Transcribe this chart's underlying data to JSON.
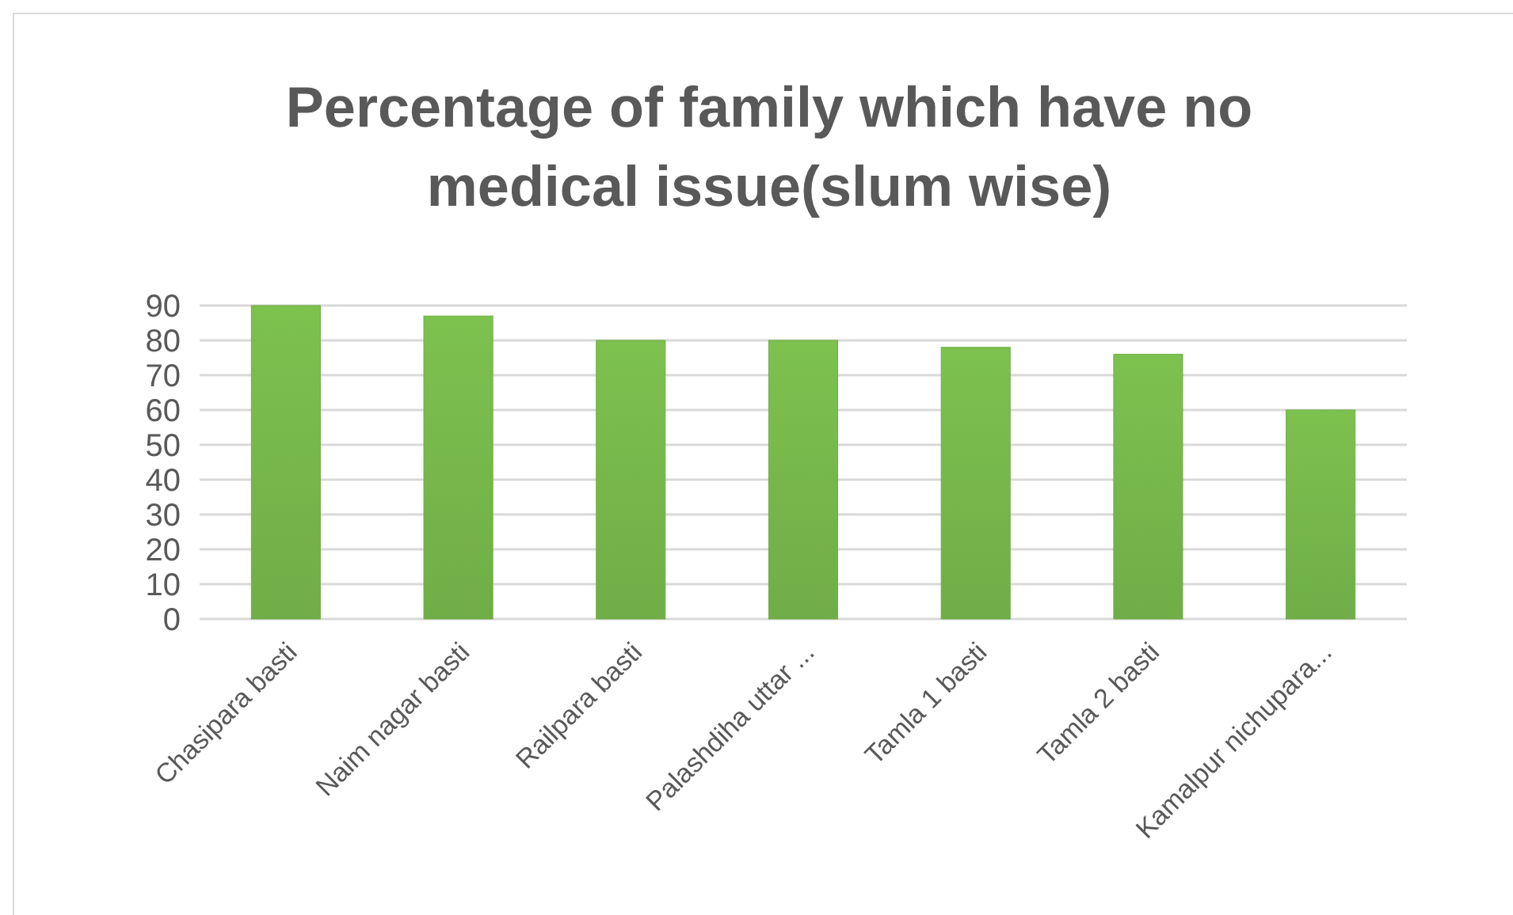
{
  "chart_data": {
    "type": "bar",
    "title": "Percentage of family which have no medical issue(slum wise)",
    "categories": [
      "Chasipara basti",
      "Naim nagar basti",
      "Railpara basti",
      "Palashdiha uttar ...",
      "Tamla 1 basti",
      "Tamla 2 basti",
      "Kamalpur nichupara..."
    ],
    "values": [
      90,
      87,
      80,
      80,
      78,
      76,
      60
    ],
    "color": "#70ad47",
    "ylim": [
      0,
      90
    ],
    "yticks": [
      0,
      10,
      20,
      30,
      40,
      50,
      60,
      70,
      80,
      90
    ],
    "grid": "y"
  }
}
